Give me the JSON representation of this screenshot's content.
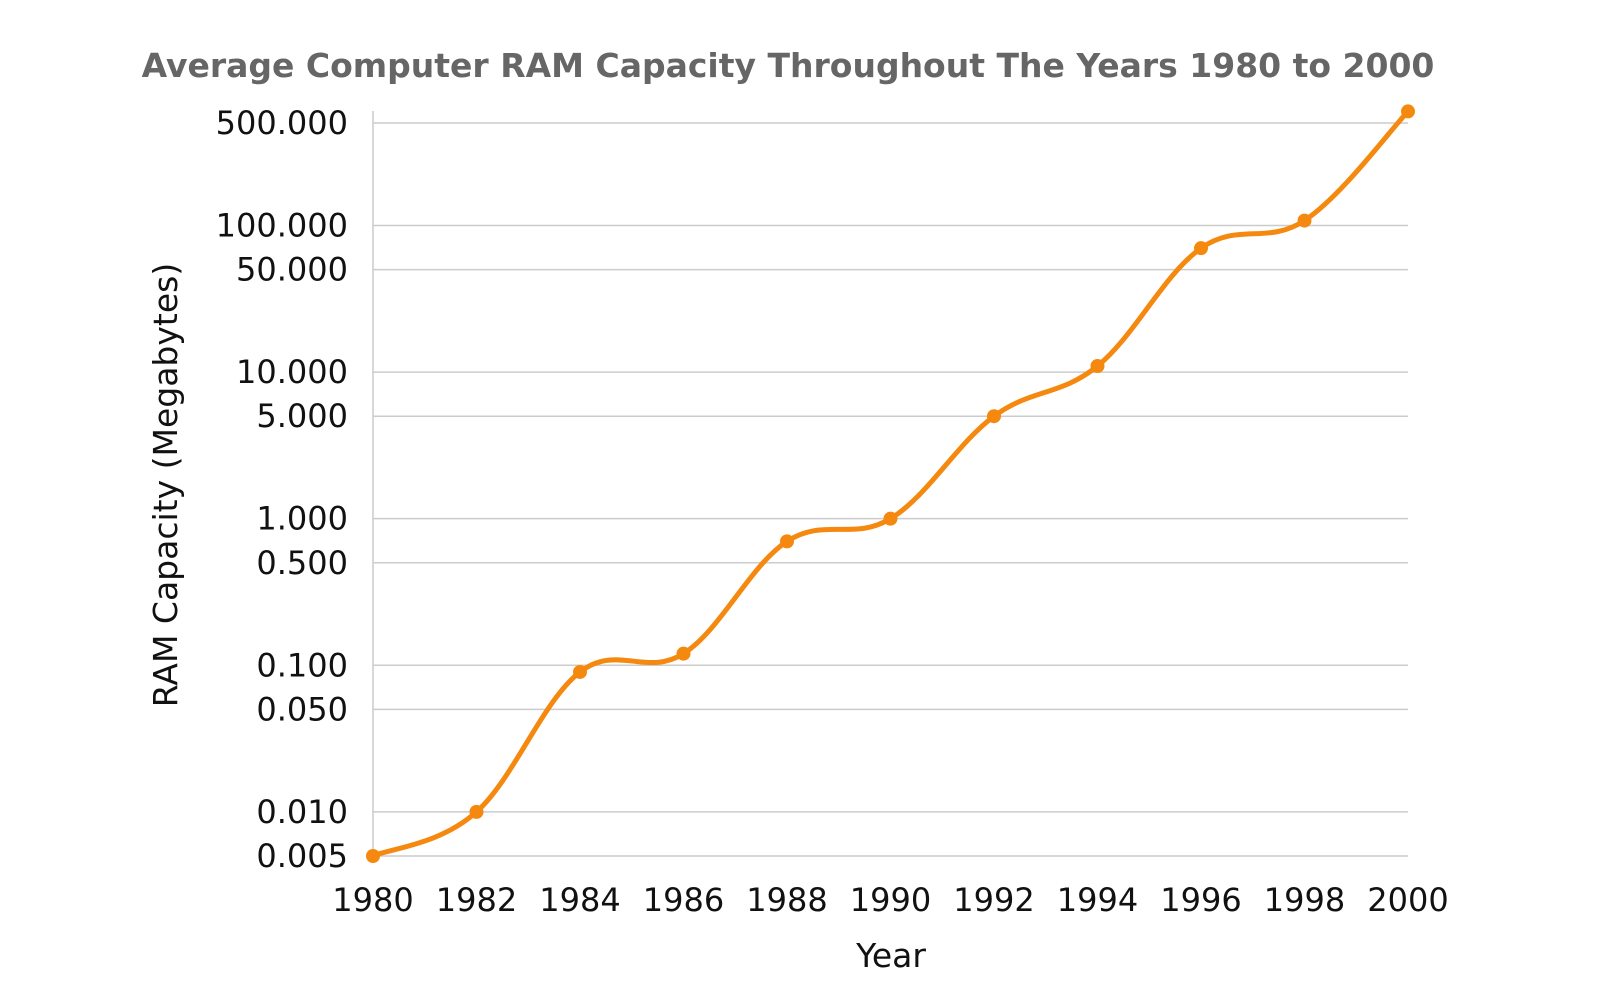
{
  "chart_data": {
    "type": "line",
    "title": "Average Computer RAM Capacity Throughout The Years 1980 to 2000",
    "xlabel": "Year",
    "ylabel": "RAM Capacity (Megabytes)",
    "yscale": "log",
    "ylim": [
      0.005,
      500
    ],
    "xlim": [
      1980,
      2000
    ],
    "grid": true,
    "legend": "none",
    "x": [
      1980,
      1982,
      1984,
      1986,
      1988,
      1990,
      1992,
      1994,
      1996,
      1998,
      2000
    ],
    "x_tick_labels": [
      "1980",
      "1982",
      "1984",
      "1986",
      "1988",
      "1990",
      "1992",
      "1994",
      "1996",
      "1998",
      "2000"
    ],
    "y_ticks": [
      0.005,
      0.01,
      0.05,
      0.1,
      0.5,
      1,
      5,
      10,
      50,
      100,
      500
    ],
    "y_tick_labels": [
      "0.005",
      "0.010",
      "0.050",
      "0.100",
      "0.500",
      "1.000",
      "5.000",
      "10.000",
      "50.000",
      "100.000",
      "500.000"
    ],
    "series": [
      {
        "values": [
          0.005,
          0.01,
          0.09,
          0.12,
          0.7,
          1,
          5,
          11,
          70,
          108,
          600
        ]
      }
    ],
    "colors": {
      "line": "#f5890f",
      "grid": "#cccccc",
      "title": "#666666",
      "text": "#111111"
    }
  }
}
